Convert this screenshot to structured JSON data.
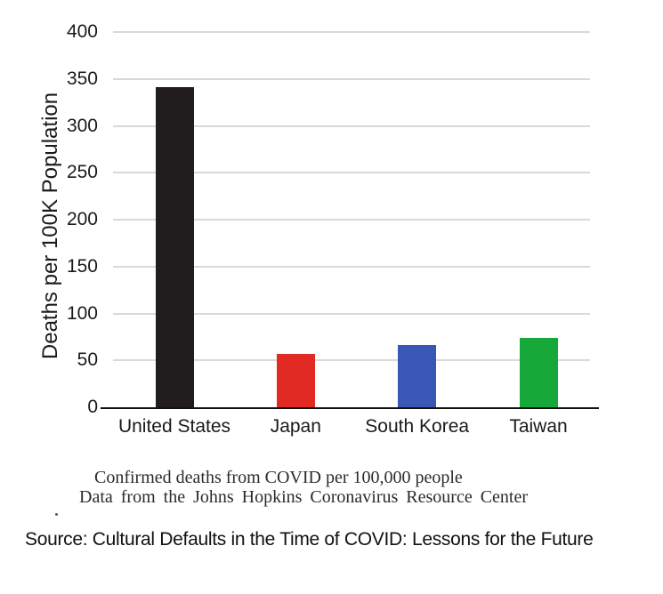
{
  "chart_data": {
    "type": "bar",
    "title": "",
    "categories": [
      "United States",
      "Japan",
      "South Korea",
      "Taiwan"
    ],
    "values": [
      341,
      57,
      66,
      74
    ],
    "bar_colors": [
      "#211d1e",
      "#e22a25",
      "#3a57b5",
      "#16a93a"
    ],
    "xlabel": "",
    "ylabel": "Deaths per 100K Population",
    "ylim": [
      0,
      400
    ],
    "y_ticks": [
      0,
      50,
      100,
      150,
      200,
      250,
      300,
      350,
      400
    ],
    "grid": "horizontal-gridlines-on",
    "legend": "none",
    "gridline_color": "#d9d9d9",
    "axis_color": "#111111",
    "tick_text_color": "#1a1a1a"
  },
  "caption": {
    "line1": "Confirmed deaths from COVID per 100,000 people",
    "line2": "Data from the Johns Hopkins Coronavirus Resource Center"
  },
  "source_line": "Source: Cultural Defaults in the Time of COVID: Lessons for the Future"
}
